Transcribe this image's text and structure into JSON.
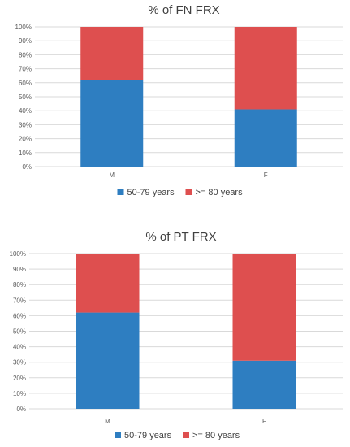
{
  "chart_data": [
    {
      "type": "bar",
      "stacked": true,
      "percent_stacked": true,
      "title": "% of FN FRX",
      "categories": [
        "M",
        "F"
      ],
      "series": [
        {
          "name": "50-79 years",
          "values": [
            62,
            41
          ],
          "color": "#2e7ec1"
        },
        {
          "name": ">= 80 years",
          "values": [
            38,
            59
          ],
          "color": "#de4f4f"
        }
      ],
      "y_ticks": [
        "0%",
        "10%",
        "20%",
        "30%",
        "40%",
        "50%",
        "60%",
        "70%",
        "80%",
        "90%",
        "100%"
      ],
      "ylim": [
        0,
        100
      ],
      "grid": true,
      "legend_position": "bottom"
    },
    {
      "type": "bar",
      "stacked": true,
      "percent_stacked": true,
      "title": "% of PT FRX",
      "categories": [
        "M",
        "F"
      ],
      "series": [
        {
          "name": "50-79 years",
          "values": [
            62,
            31
          ],
          "color": "#2e7ec1"
        },
        {
          "name": ">= 80 years",
          "values": [
            38,
            69
          ],
          "color": "#de4f4f"
        }
      ],
      "y_ticks": [
        "0%",
        "10%",
        "20%",
        "30%",
        "40%",
        "50%",
        "60%",
        "70%",
        "80%",
        "90%",
        "100%"
      ],
      "ylim": [
        0,
        100
      ],
      "grid": true,
      "legend_position": "bottom"
    }
  ]
}
